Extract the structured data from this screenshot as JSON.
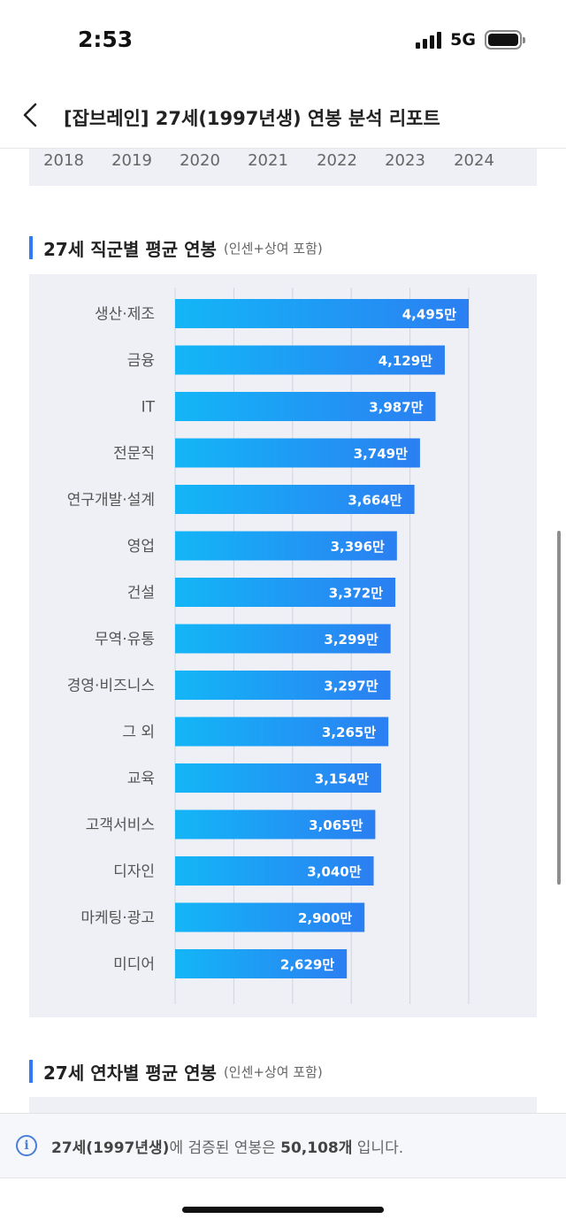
{
  "status_bar": {
    "time": "2:53",
    "network": "5G"
  },
  "header": {
    "title": "[잡브레인] 27세(1997년생) 연봉 분석 리포트"
  },
  "years": [
    "2018",
    "2019",
    "2020",
    "2021",
    "2022",
    "2023",
    "2024"
  ],
  "section_job": {
    "title": "27세 직군별 평균 연봉",
    "subtitle": "(인센+상여 포함)"
  },
  "section_year": {
    "title": "27세 연차별 평균 연봉",
    "subtitle": "(인센+상여 포함)"
  },
  "chart_data": {
    "type": "bar",
    "orientation": "horizontal",
    "categories": [
      "생산·제조",
      "금융",
      "IT",
      "전문직",
      "연구개발·설계",
      "영업",
      "건설",
      "무역·유통",
      "경영·비즈니스",
      "그 외",
      "교육",
      "고객서비스",
      "디자인",
      "마케팅·광고",
      "미디어"
    ],
    "values": [
      4495,
      4129,
      3987,
      3749,
      3664,
      3396,
      3372,
      3299,
      3297,
      3265,
      3154,
      3065,
      3040,
      2900,
      2629
    ],
    "data_labels": [
      "4,495만",
      "4,129만",
      "3,987만",
      "3,749만",
      "3,664만",
      "3,396만",
      "3,372만",
      "3,299만",
      "3,297만",
      "3,265만",
      "3,154만",
      "3,065만",
      "3,040만",
      "2,900만",
      "2,629만"
    ],
    "xlim": [
      0,
      5000
    ],
    "grid": true,
    "colors": {
      "bar_start": "#13b6f7",
      "bar_end": "#2b7ff2",
      "label": "#ffffff"
    }
  },
  "info": {
    "prefix": "27세(1997년생)",
    "middle": "에 검증된 연봉은 ",
    "count": "50,108개",
    "suffix": " 입니다."
  },
  "accent_color": "#2f7bf5"
}
